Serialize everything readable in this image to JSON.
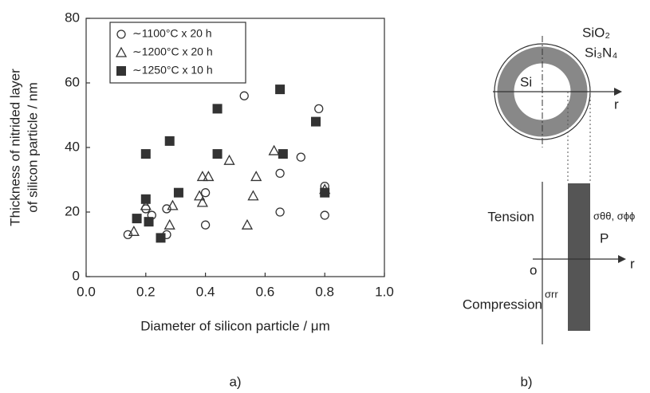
{
  "chart_data": {
    "type": "scatter",
    "xlabel": "Diameter of silicon particle / μm",
    "ylabel": [
      "Thickness of nitrided layer",
      "of silicon particle / nm"
    ],
    "caption": "a)",
    "xlim": [
      0,
      1
    ],
    "ylim": [
      0,
      80
    ],
    "xticks": [
      {
        "value": 0,
        "label": "0.0"
      },
      {
        "value": 0.2,
        "label": "0.2"
      },
      {
        "value": 0.4,
        "label": "0.4"
      },
      {
        "value": 0.6,
        "label": "0.6"
      },
      {
        "value": 0.8,
        "label": "0.8"
      },
      {
        "value": 1,
        "label": "1.0"
      }
    ],
    "yticks": [
      0,
      20,
      40,
      60,
      80
    ],
    "legend": "upper left",
    "series": [
      {
        "name": "∼1100°C x 20 h",
        "marker": "circle",
        "color": "#333333",
        "x": [
          0.14,
          0.2,
          0.22,
          0.27,
          0.27,
          0.4,
          0.4,
          0.53,
          0.65,
          0.65,
          0.72,
          0.78,
          0.8,
          0.8
        ],
        "values": [
          13,
          21,
          19,
          13,
          21,
          16,
          26,
          56,
          20,
          32,
          37,
          52,
          19,
          28
        ]
      },
      {
        "name": "∼1200°C x 20 h",
        "marker": "triangle",
        "color": "#333333",
        "x": [
          0.16,
          0.2,
          0.28,
          0.29,
          0.38,
          0.39,
          0.39,
          0.41,
          0.48,
          0.54,
          0.56,
          0.57,
          0.63,
          0.8
        ],
        "values": [
          14,
          22,
          16,
          22,
          25,
          23,
          31,
          31,
          36,
          16,
          25,
          31,
          39,
          27
        ]
      },
      {
        "name": "∼1250°C x 10 h",
        "marker": "square",
        "color": "#333333",
        "x": [
          0.17,
          0.2,
          0.2,
          0.21,
          0.25,
          0.28,
          0.31,
          0.44,
          0.44,
          0.65,
          0.66,
          0.77,
          0.8
        ],
        "values": [
          18,
          38,
          24,
          17,
          12,
          42,
          26,
          52,
          38,
          58,
          38,
          48,
          26
        ]
      }
    ]
  },
  "panel_b": {
    "caption": "b)",
    "sio2": "SiO₂",
    "si3n4": "Si₃N₄",
    "si": "Si",
    "r_top": "r",
    "r_bottom": "r",
    "tension": "Tension",
    "stress_tt": "σθθ, σϕϕ",
    "p": "P",
    "origin": "o",
    "compression": "Compression",
    "stress_rr": "σrr"
  }
}
